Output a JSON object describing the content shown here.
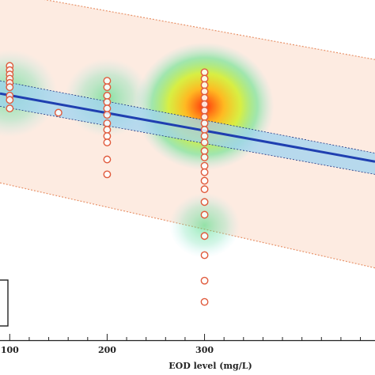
{
  "chart_data": {
    "type": "scatter",
    "title": "",
    "xlabel": "EOD level (mg/L)",
    "ylabel": "",
    "xlim": [
      90,
      475
    ],
    "ylim": [
      -4,
      76
    ],
    "x_ticks": [
      100,
      200,
      300
    ],
    "x_tick_labels": [
      "100",
      "200",
      "300"
    ],
    "grid": false,
    "legend": "none",
    "colors": {
      "fit_line": "#1f3fb0",
      "confidence_band": "#9fd3f0",
      "prediction_band_fill": "#fde8dc",
      "prediction_band_edge": "#e8946c",
      "point_edge": "#e05a3c",
      "point_fill": "#ffffff"
    },
    "fit": {
      "x": [
        90,
        475
      ],
      "y": [
        54,
        38
      ]
    },
    "confidence_band": {
      "upper": {
        "x": [
          90,
          475
        ],
        "y": [
          57,
          40
        ]
      },
      "lower": {
        "x": [
          90,
          475
        ],
        "y": [
          51,
          35
        ]
      }
    },
    "prediction_band": {
      "upper": {
        "x": [
          90,
          475
        ],
        "y": [
          78,
          62
        ]
      },
      "lower": {
        "x": [
          90,
          475
        ],
        "y": [
          33,
          13
        ]
      }
    },
    "density_hotspots": [
      {
        "x": 100,
        "y": 54,
        "strength": 0.55
      },
      {
        "x": 200,
        "y": 53,
        "strength": 0.45
      },
      {
        "x": 300,
        "y": 51,
        "strength": 1.0
      },
      {
        "x": 300,
        "y": 23,
        "strength": 0.3
      }
    ],
    "series": [
      {
        "values": [
          {
            "x": 100,
            "y": 60.5
          },
          {
            "x": 100,
            "y": 59.5
          },
          {
            "x": 100,
            "y": 58.5
          },
          {
            "x": 100,
            "y": 57.5
          },
          {
            "x": 100,
            "y": 56.5
          },
          {
            "x": 100,
            "y": 55.5
          },
          {
            "x": 100,
            "y": 53.5
          },
          {
            "x": 100,
            "y": 52.5
          },
          {
            "x": 100,
            "y": 50.5
          },
          {
            "x": 150,
            "y": 49.5
          },
          {
            "x": 200,
            "y": 57.0
          },
          {
            "x": 200,
            "y": 55.5
          },
          {
            "x": 200,
            "y": 53.5
          },
          {
            "x": 200,
            "y": 52.0
          },
          {
            "x": 200,
            "y": 50.5
          },
          {
            "x": 200,
            "y": 49.0
          },
          {
            "x": 200,
            "y": 47.0
          },
          {
            "x": 200,
            "y": 45.5
          },
          {
            "x": 200,
            "y": 44.0
          },
          {
            "x": 200,
            "y": 42.5
          },
          {
            "x": 200,
            "y": 38.5
          },
          {
            "x": 200,
            "y": 35.0
          },
          {
            "x": 300,
            "y": 59.0
          },
          {
            "x": 300,
            "y": 57.5
          },
          {
            "x": 300,
            "y": 56.0
          },
          {
            "x": 300,
            "y": 54.5
          },
          {
            "x": 300,
            "y": 53.0
          },
          {
            "x": 300,
            "y": 51.5
          },
          {
            "x": 300,
            "y": 50.0
          },
          {
            "x": 300,
            "y": 48.5
          },
          {
            "x": 300,
            "y": 47.0
          },
          {
            "x": 300,
            "y": 45.5
          },
          {
            "x": 300,
            "y": 44.0
          },
          {
            "x": 300,
            "y": 42.5
          },
          {
            "x": 300,
            "y": 40.5
          },
          {
            "x": 300,
            "y": 39.0
          },
          {
            "x": 300,
            "y": 37.0
          },
          {
            "x": 300,
            "y": 35.5
          },
          {
            "x": 300,
            "y": 33.5
          },
          {
            "x": 300,
            "y": 31.5
          },
          {
            "x": 300,
            "y": 28.5
          },
          {
            "x": 300,
            "y": 25.5
          },
          {
            "x": 300,
            "y": 20.5
          },
          {
            "x": 300,
            "y": 16.0
          },
          {
            "x": 300,
            "y": 10.0
          },
          {
            "x": 300,
            "y": 5.0
          }
        ]
      }
    ]
  }
}
